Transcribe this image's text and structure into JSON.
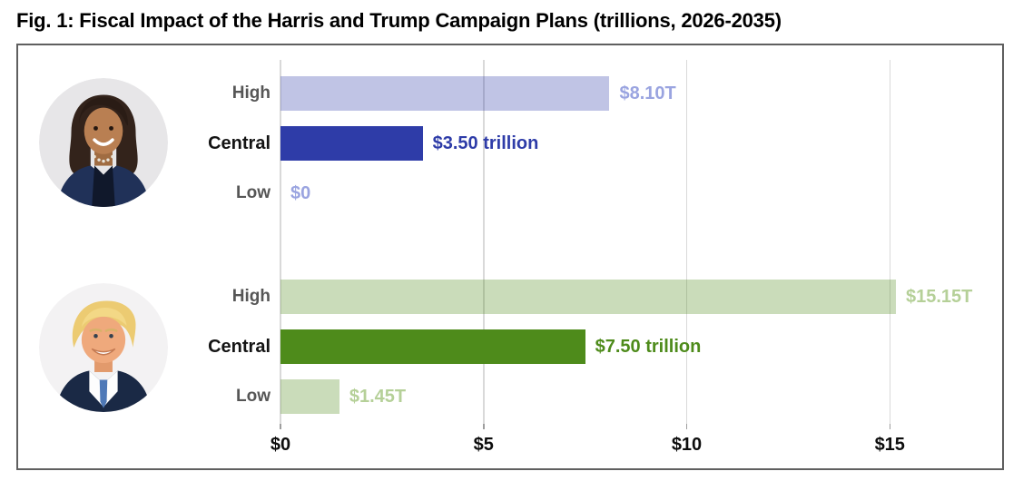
{
  "title": "Fig. 1: Fiscal Impact of the Harris and Trump Campaign Plans (trillions, 2026-2035)",
  "chart_data": {
    "type": "bar",
    "orientation": "horizontal",
    "categories": [
      "High",
      "Central",
      "Low"
    ],
    "series": [
      {
        "name": "Harris",
        "avatar": "harris-portrait",
        "values": [
          8.1,
          3.5,
          0
        ],
        "value_labels": [
          "$8.10T",
          "$3.50 trillion",
          "$0"
        ],
        "bar_color": "#2e3ca8",
        "bar_color_light": "#c2c8ea",
        "value_text_strong": "#2e3ca8",
        "value_text_light": "#9aa4e0"
      },
      {
        "name": "Trump",
        "avatar": "trump-portrait",
        "values": [
          15.15,
          7.5,
          1.45
        ],
        "value_labels": [
          "$15.15T",
          "$7.50 trillion",
          "$1.45T"
        ],
        "bar_color": "#4e8b1b",
        "bar_color_light": "#cbdeb4",
        "value_text_strong": "#4e8b1b",
        "value_text_light": "#b5d098"
      }
    ],
    "x_ticks": [
      {
        "value": 0,
        "label": "$0"
      },
      {
        "value": 5,
        "label": "$5"
      },
      {
        "value": 10,
        "label": "$10"
      },
      {
        "value": 15,
        "label": "$15"
      }
    ],
    "xlim": [
      0,
      17.9
    ],
    "grid": true,
    "legend": "none",
    "category_label_color_normal": "#565656",
    "category_label_color_emphasis": "#141414"
  }
}
